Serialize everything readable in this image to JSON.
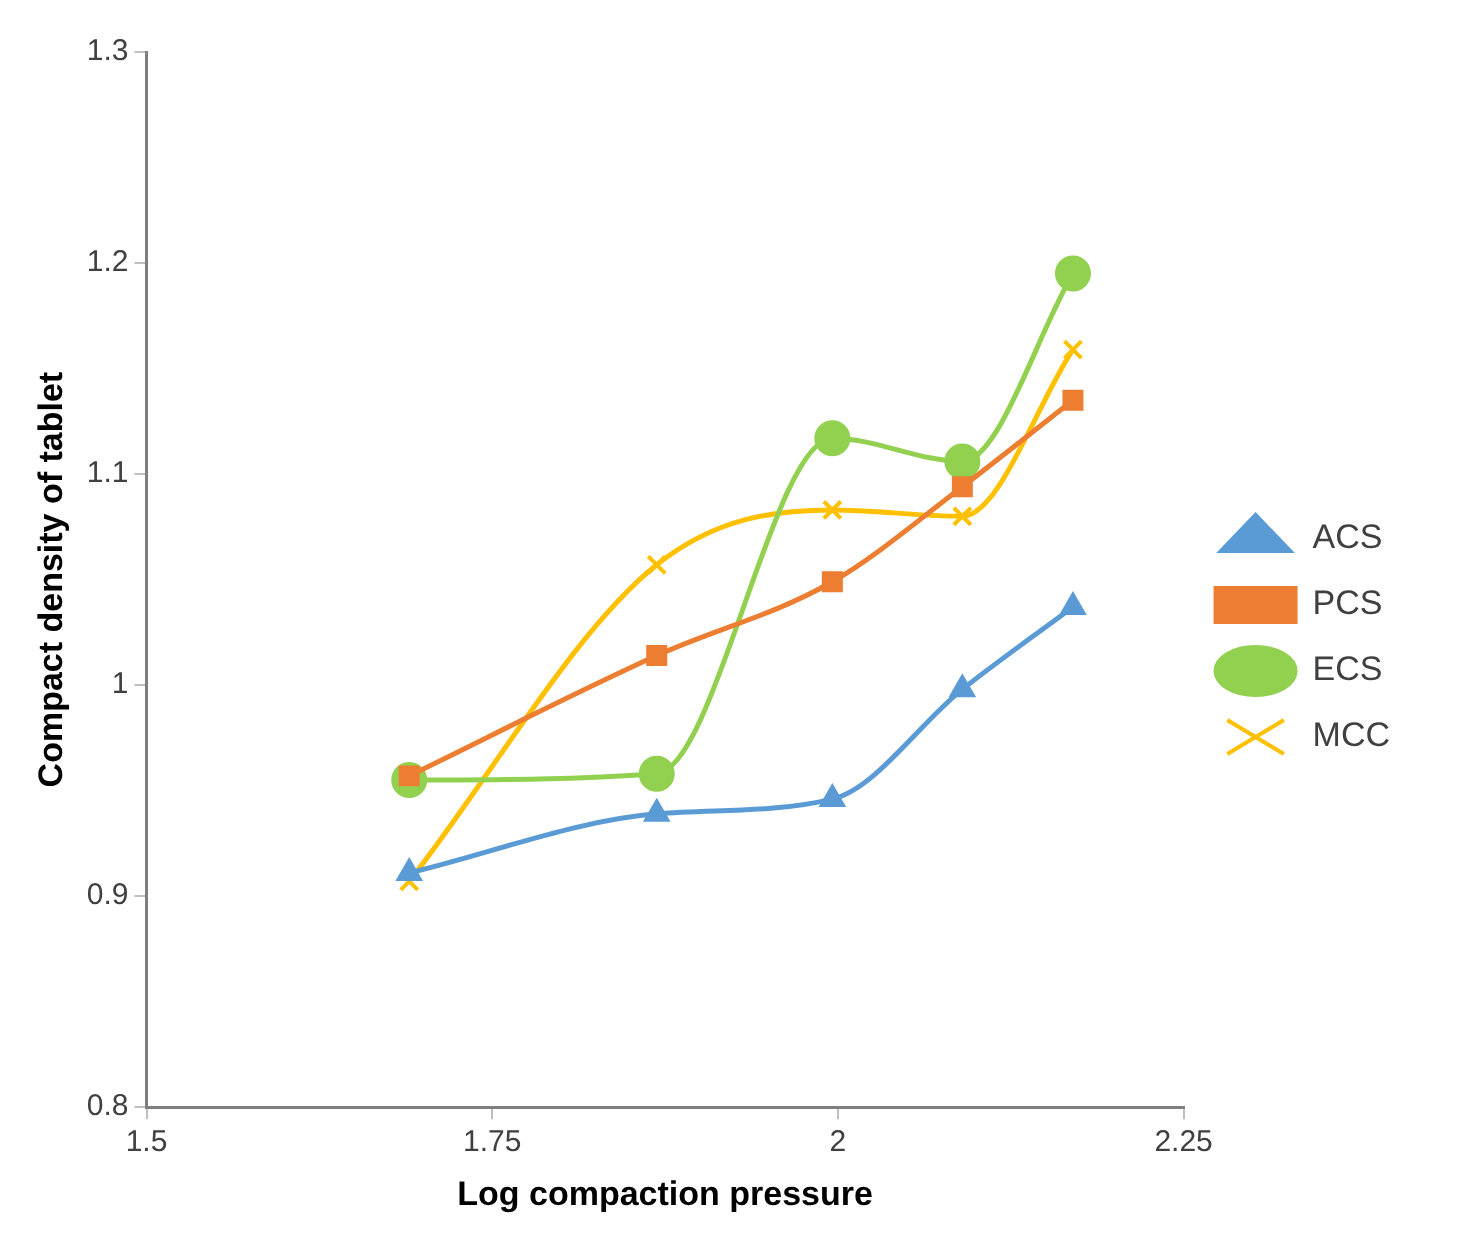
{
  "chart_data": {
    "type": "line",
    "xlabel": "Log compaction pressure",
    "ylabel": "Compact density of tablet",
    "x": [
      1.69,
      1.869,
      1.996,
      2.09,
      2.17
    ],
    "series": [
      {
        "name": "ACS",
        "color": "#5b9bd5",
        "marker": "triangle",
        "values": [
          0.911,
          0.939,
          0.946,
          0.998,
          1.037
        ]
      },
      {
        "name": "PCS",
        "color": "#ed7d31",
        "marker": "square",
        "values": [
          0.957,
          1.014,
          1.049,
          1.094,
          1.135
        ]
      },
      {
        "name": "ECS",
        "color": "#92d050",
        "marker": "circle",
        "values": [
          0.955,
          0.958,
          1.117,
          1.106,
          1.195
        ]
      },
      {
        "name": "MCC",
        "color": "#ffc000",
        "marker": "cross",
        "values": [
          0.907,
          1.057,
          1.083,
          1.08,
          1.159
        ]
      }
    ],
    "xlim": [
      1.5,
      2.25
    ],
    "xticks": [
      1.5,
      1.75,
      2,
      2.25
    ],
    "ylim": [
      0.8,
      1.3
    ],
    "yticks": [
      0.8,
      0.9,
      1,
      1.1,
      1.2,
      1.3
    ],
    "grid": false,
    "legend": "right",
    "line_style": "solid"
  }
}
